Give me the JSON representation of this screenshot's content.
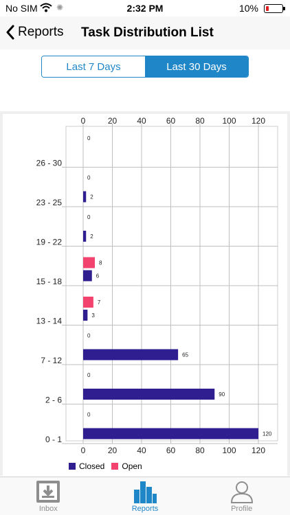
{
  "status_bar": {
    "carrier": "No SIM",
    "time": "2:32 PM",
    "battery": "10%"
  },
  "nav": {
    "back_label": "Reports",
    "title": "Task Distribution List"
  },
  "segments": [
    {
      "label": "Last 7 Days",
      "selected": false
    },
    {
      "label": "Last 30 Days",
      "selected": true
    }
  ],
  "tabs": [
    {
      "label": "Inbox",
      "icon": "inbox-download-icon",
      "active": false
    },
    {
      "label": "Reports",
      "icon": "bar-chart-icon",
      "active": true
    },
    {
      "label": "Profile",
      "icon": "person-icon",
      "active": false
    }
  ],
  "colors": {
    "accent": "#1f86c8",
    "closed": "#2e1e8f",
    "open": "#f2436e"
  },
  "chart_data": {
    "type": "bar",
    "orientation": "horizontal",
    "categories": [
      "26 - 30",
      "23 - 25",
      "19 - 22",
      "15 - 18",
      "13 - 14",
      "7 - 12",
      "2 - 6",
      "0 - 1"
    ],
    "series": [
      {
        "name": "Open",
        "values": [
          0,
          0,
          0,
          8,
          7,
          0,
          0,
          0
        ]
      },
      {
        "name": "Closed",
        "values": [
          null,
          2,
          2,
          6,
          3,
          65,
          90,
          120
        ]
      }
    ],
    "xticks": [
      0,
      20,
      40,
      60,
      80,
      100,
      120
    ],
    "xlim": [
      0,
      130
    ],
    "grid": true,
    "legend": "bottom-left"
  }
}
